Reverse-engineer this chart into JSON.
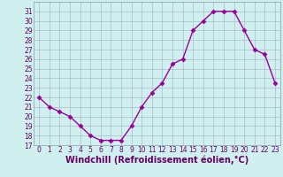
{
  "x": [
    0,
    1,
    2,
    3,
    4,
    5,
    6,
    7,
    8,
    9,
    10,
    11,
    12,
    13,
    14,
    15,
    16,
    17,
    18,
    19,
    20,
    21,
    22,
    23
  ],
  "y": [
    22,
    21,
    20.5,
    20,
    19,
    18,
    17.5,
    17.5,
    17.5,
    19,
    21,
    22.5,
    23.5,
    25.5,
    26,
    29,
    30,
    31,
    31,
    31,
    29,
    27,
    26.5,
    23.5
  ],
  "line_color": "#990099",
  "marker": "D",
  "marker_size": 2.5,
  "bg_color": "#cff0ee",
  "grid_color": "#aabbcc",
  "xlabel": "Windchill (Refroidissement éolien,°C)",
  "xlim": [
    -0.5,
    23.5
  ],
  "ylim": [
    17,
    32
  ],
  "yticks": [
    17,
    18,
    19,
    20,
    21,
    22,
    23,
    24,
    25,
    26,
    27,
    28,
    29,
    30,
    31
  ],
  "xticks": [
    0,
    1,
    2,
    3,
    4,
    5,
    6,
    7,
    8,
    9,
    10,
    11,
    12,
    13,
    14,
    15,
    16,
    17,
    18,
    19,
    20,
    21,
    22,
    23
  ],
  "xlabel_fontsize": 7,
  "tick_fontsize": 5.5,
  "xlabel_color": "#660066",
  "tick_color": "#660066",
  "line_width": 1.0,
  "spine_color": "#8899aa"
}
